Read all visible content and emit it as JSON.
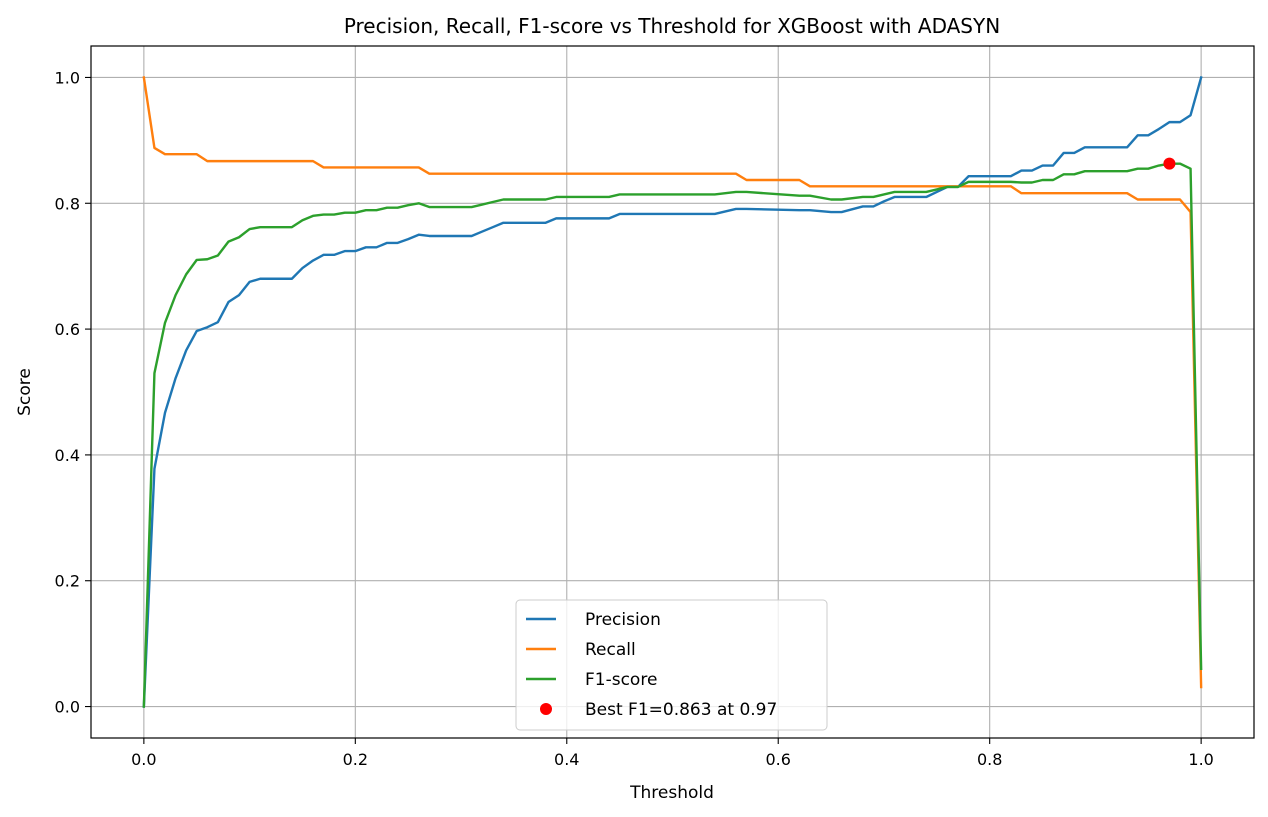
{
  "chart_data": {
    "type": "line",
    "title": "Precision, Recall, F1-score vs Threshold for XGBoost with ADASYN",
    "xlabel": "Threshold",
    "ylabel": "Score",
    "xlim": [
      -0.05,
      1.05
    ],
    "ylim": [
      -0.05,
      1.05
    ],
    "grid": true,
    "legend_position": "lower-center",
    "xticks": [
      0.0,
      0.2,
      0.4,
      0.6,
      0.8,
      1.0
    ],
    "xtick_labels": [
      "0.0",
      "0.2",
      "0.4",
      "0.6",
      "0.8",
      "1.0"
    ],
    "yticks": [
      0.0,
      0.2,
      0.4,
      0.6,
      0.8,
      1.0
    ],
    "ytick_labels": [
      "0.0",
      "0.2",
      "0.4",
      "0.6",
      "0.8",
      "1.0"
    ],
    "series": [
      {
        "name": "Precision",
        "color": "#1f77b4",
        "x": [
          0.0,
          0.01,
          0.02,
          0.03,
          0.04,
          0.05,
          0.06,
          0.07,
          0.08,
          0.09,
          0.1,
          0.11,
          0.12,
          0.13,
          0.14,
          0.15,
          0.16,
          0.17,
          0.18,
          0.19,
          0.2,
          0.21,
          0.22,
          0.23,
          0.24,
          0.25,
          0.26,
          0.27,
          0.28,
          0.3,
          0.31,
          0.32,
          0.33,
          0.34,
          0.38,
          0.39,
          0.44,
          0.45,
          0.53,
          0.54,
          0.56,
          0.57,
          0.62,
          0.63,
          0.65,
          0.66,
          0.68,
          0.69,
          0.7,
          0.71,
          0.74,
          0.75,
          0.76,
          0.77,
          0.78,
          0.82,
          0.83,
          0.84,
          0.85,
          0.86,
          0.87,
          0.88,
          0.89,
          0.93,
          0.94,
          0.95,
          0.96,
          0.97,
          0.98,
          0.99,
          1.0
        ],
        "values": [
          0.0,
          0.378,
          0.467,
          0.522,
          0.566,
          0.597,
          0.603,
          0.611,
          0.643,
          0.654,
          0.675,
          0.68,
          0.68,
          0.68,
          0.68,
          0.697,
          0.709,
          0.718,
          0.718,
          0.724,
          0.724,
          0.73,
          0.73,
          0.737,
          0.737,
          0.743,
          0.75,
          0.748,
          0.748,
          0.748,
          0.748,
          0.755,
          0.762,
          0.769,
          0.769,
          0.776,
          0.776,
          0.783,
          0.783,
          0.783,
          0.791,
          0.791,
          0.789,
          0.789,
          0.786,
          0.786,
          0.795,
          0.795,
          0.803,
          0.81,
          0.81,
          0.818,
          0.826,
          0.826,
          0.843,
          0.843,
          0.852,
          0.852,
          0.86,
          0.86,
          0.88,
          0.88,
          0.889,
          0.889,
          0.908,
          0.908,
          0.918,
          0.929,
          0.929,
          0.94,
          1.0
        ]
      },
      {
        "name": "Recall",
        "color": "#ff7f0e",
        "x": [
          0.0,
          0.01,
          0.02,
          0.05,
          0.06,
          0.16,
          0.17,
          0.26,
          0.27,
          0.56,
          0.57,
          0.62,
          0.63,
          0.76,
          0.77,
          0.82,
          0.83,
          0.93,
          0.94,
          0.98,
          0.99,
          1.0
        ],
        "values": [
          1.0,
          0.888,
          0.878,
          0.878,
          0.867,
          0.867,
          0.857,
          0.857,
          0.847,
          0.847,
          0.837,
          0.837,
          0.827,
          0.827,
          0.827,
          0.827,
          0.816,
          0.816,
          0.806,
          0.806,
          0.786,
          0.031
        ]
      },
      {
        "name": "F1-score",
        "color": "#2ca02c",
        "x": [
          0.0,
          0.01,
          0.02,
          0.03,
          0.04,
          0.05,
          0.06,
          0.07,
          0.08,
          0.09,
          0.1,
          0.11,
          0.12,
          0.13,
          0.14,
          0.15,
          0.16,
          0.17,
          0.18,
          0.19,
          0.2,
          0.21,
          0.22,
          0.23,
          0.24,
          0.25,
          0.26,
          0.27,
          0.28,
          0.3,
          0.31,
          0.32,
          0.33,
          0.34,
          0.38,
          0.39,
          0.44,
          0.45,
          0.53,
          0.54,
          0.56,
          0.57,
          0.62,
          0.63,
          0.65,
          0.66,
          0.68,
          0.69,
          0.7,
          0.71,
          0.74,
          0.75,
          0.76,
          0.77,
          0.78,
          0.82,
          0.83,
          0.84,
          0.85,
          0.86,
          0.87,
          0.88,
          0.89,
          0.93,
          0.94,
          0.95,
          0.96,
          0.97,
          0.98,
          0.99,
          1.0
        ],
        "values": [
          0.0,
          0.53,
          0.61,
          0.654,
          0.687,
          0.71,
          0.711,
          0.717,
          0.739,
          0.746,
          0.759,
          0.762,
          0.762,
          0.762,
          0.762,
          0.773,
          0.78,
          0.782,
          0.782,
          0.785,
          0.785,
          0.789,
          0.789,
          0.793,
          0.793,
          0.797,
          0.8,
          0.794,
          0.794,
          0.794,
          0.794,
          0.798,
          0.802,
          0.806,
          0.806,
          0.81,
          0.81,
          0.814,
          0.814,
          0.814,
          0.818,
          0.818,
          0.812,
          0.812,
          0.806,
          0.806,
          0.81,
          0.81,
          0.814,
          0.818,
          0.818,
          0.822,
          0.826,
          0.826,
          0.834,
          0.834,
          0.833,
          0.833,
          0.837,
          0.837,
          0.846,
          0.846,
          0.851,
          0.851,
          0.855,
          0.855,
          0.86,
          0.863,
          0.863,
          0.855,
          0.06
        ]
      }
    ],
    "best_point": {
      "label": "Best F1=0.863 at 0.97",
      "x": 0.97,
      "y": 0.863,
      "color": "#ff0000"
    }
  }
}
